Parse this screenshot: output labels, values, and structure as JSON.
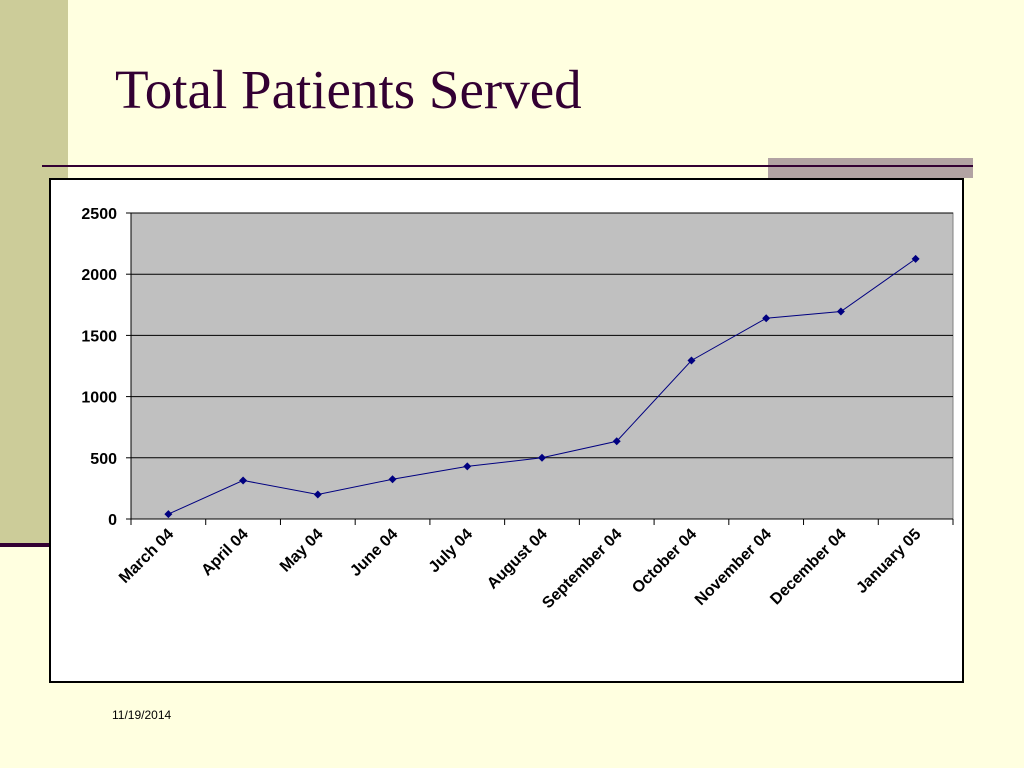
{
  "slide": {
    "title": "Total Patients Served",
    "date": "11/19/2014"
  },
  "chart_data": {
    "type": "line",
    "title": "",
    "xlabel": "",
    "ylabel": "",
    "categories": [
      "March 04",
      "April 04",
      "May 04",
      "June 04",
      "July 04",
      "August 04",
      "September 04",
      "October 04",
      "November 04",
      "December 04",
      "January 05"
    ],
    "series": [
      {
        "values": [
          40,
          315,
          200,
          325,
          430,
          500,
          635,
          1295,
          1640,
          1695,
          2125
        ]
      }
    ],
    "ylim": [
      0,
      2500
    ],
    "yticks": [
      0,
      500,
      1000,
      1500,
      2000,
      2500
    ],
    "grid": true,
    "legend": "none",
    "colors": {
      "line": "#000080",
      "plot_bg": "#C0C0C0",
      "gridline": "#000000"
    }
  }
}
